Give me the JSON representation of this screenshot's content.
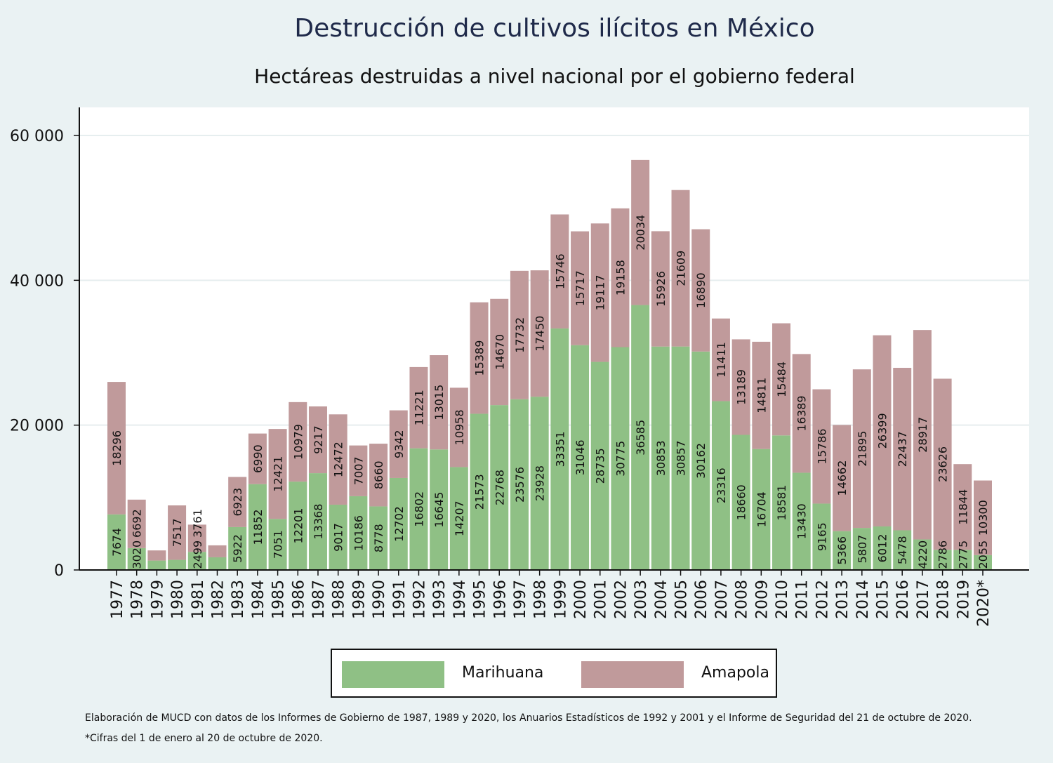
{
  "chart_data": {
    "type": "bar",
    "stacked": true,
    "title": "Destrucción de cultivos ilícitos en México",
    "subtitle": "Hectáreas destruidas a nivel nacional por el gobierno federal",
    "ylim": [
      0,
      64000
    ],
    "yticks": [
      0,
      20000,
      40000,
      60000
    ],
    "ytick_labels": [
      "0",
      "20 000",
      "40 000",
      "60 000"
    ],
    "grid": true,
    "legend_placement": "bottom",
    "colors": {
      "Marihuana": "#8fc085",
      "Amapola": "#c09a9b"
    },
    "categories": [
      "1977",
      "1978",
      "1979",
      "1980",
      "1981",
      "1982",
      "1983",
      "1984",
      "1985",
      "1986",
      "1987",
      "1988",
      "1989",
      "1990",
      "1991",
      "1992",
      "1993",
      "1994",
      "1995",
      "1996",
      "1997",
      "1998",
      "1999",
      "2000",
      "2001",
      "2002",
      "2003",
      "2004",
      "2005",
      "2006",
      "2007",
      "2008",
      "2009",
      "2010",
      "2011",
      "2012",
      "2013",
      "2014",
      "2015",
      "2016",
      "2017",
      "2018",
      "2019",
      "2020*"
    ],
    "series": [
      {
        "name": "Marihuana",
        "values": [
          7674,
          3020,
          1300,
          1400,
          2499,
          1750,
          5922,
          11852,
          7051,
          12201,
          13368,
          9017,
          10186,
          8778,
          12702,
          16802,
          16645,
          14207,
          21573,
          22768,
          23576,
          23928,
          33351,
          31046,
          28735,
          30775,
          36585,
          30853,
          30857,
          30162,
          23316,
          18660,
          16704,
          18581,
          13430,
          9165,
          5366,
          5807,
          6012,
          5478,
          4220,
          2786,
          2775,
          2055
        ],
        "labeled": [
          true,
          true,
          false,
          false,
          true,
          false,
          true,
          true,
          true,
          true,
          true,
          true,
          true,
          true,
          true,
          true,
          true,
          true,
          true,
          true,
          true,
          true,
          true,
          true,
          true,
          true,
          true,
          true,
          true,
          true,
          true,
          true,
          true,
          true,
          true,
          true,
          true,
          true,
          true,
          true,
          true,
          true,
          true,
          true
        ]
      },
      {
        "name": "Amapola",
        "values": [
          18296,
          6692,
          1400,
          7517,
          3761,
          1650,
          6923,
          6990,
          12421,
          10979,
          9217,
          12472,
          7007,
          8660,
          9342,
          11221,
          13015,
          10958,
          15389,
          14670,
          17732,
          17450,
          15746,
          15717,
          19117,
          19158,
          20034,
          15926,
          21609,
          16890,
          11411,
          13189,
          14811,
          15484,
          16389,
          15786,
          14662,
          21895,
          26399,
          22437,
          28917,
          23626,
          11844,
          10300
        ],
        "labeled": [
          true,
          true,
          false,
          true,
          true,
          false,
          true,
          true,
          true,
          true,
          true,
          true,
          true,
          true,
          true,
          true,
          true,
          true,
          true,
          true,
          true,
          true,
          true,
          true,
          true,
          true,
          true,
          true,
          true,
          true,
          true,
          true,
          true,
          true,
          true,
          true,
          true,
          true,
          true,
          true,
          true,
          true,
          true,
          true
        ]
      }
    ]
  },
  "legend": {
    "marihuana": "Marihuana",
    "amapola": "Amapola"
  },
  "notes": {
    "source": "Elaboración de MUCD con datos de los Informes de Gobierno de 1987, 1989 y 2020, los Anuarios Estadísticos de 1992 y 2001 y el Informe de Seguridad del 21 de octubre de 2020.",
    "footnote": "*Cifras del 1 de enero al 20 de octubre de 2020."
  }
}
